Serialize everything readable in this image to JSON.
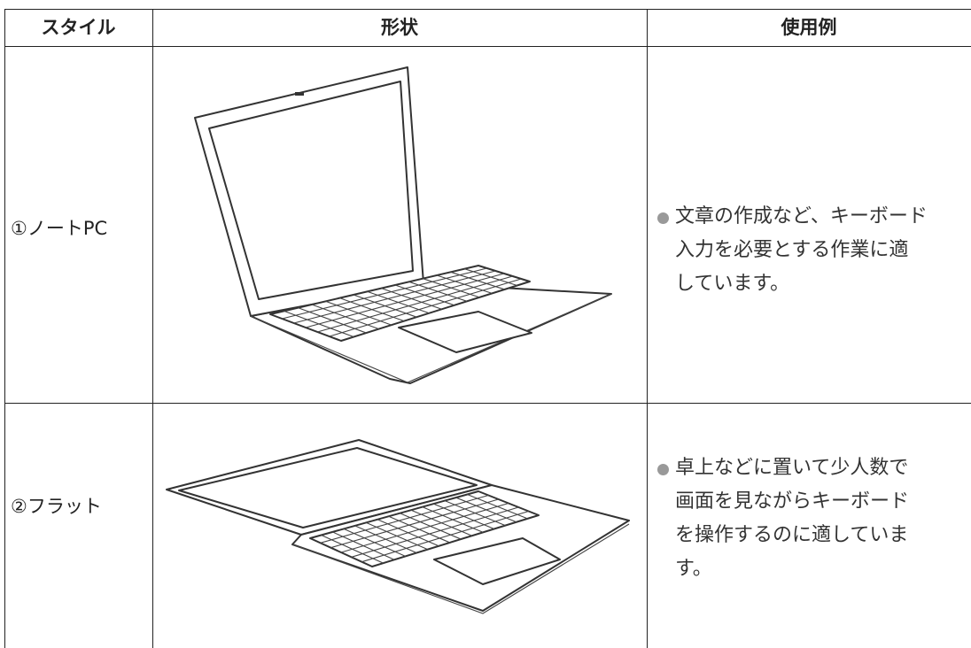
{
  "table": {
    "headers": [
      "スタイル",
      "形状",
      "使用例"
    ],
    "rows": [
      {
        "style": "①ノートPC",
        "usage": [
          "文章の作成など、キーボード",
          "入力を必要とする作業に適",
          "しています。"
        ]
      },
      {
        "style": "②フラット",
        "usage": [
          "卓上などに置いて少人数で",
          "画面を見ながらキーボード",
          "を操作するのに適していま",
          "す。"
        ]
      }
    ]
  }
}
